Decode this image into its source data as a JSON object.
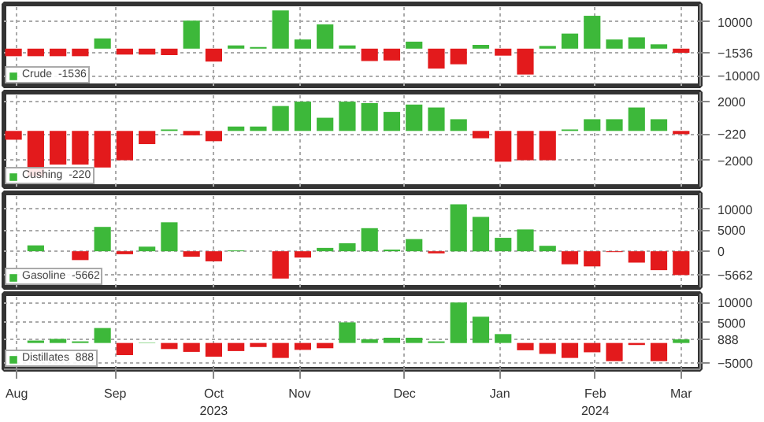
{
  "chart_data": [
    {
      "type": "bar",
      "x": [
        "2023-08-04",
        "2023-08-11",
        "2023-08-18",
        "2023-08-25",
        "2023-09-01",
        "2023-09-08",
        "2023-09-15",
        "2023-09-22",
        "2023-09-29",
        "2023-10-06",
        "2023-10-13",
        "2023-10-20",
        "2023-10-27",
        "2023-11-03",
        "2023-11-10",
        "2023-11-17",
        "2023-11-24",
        "2023-12-01",
        "2023-12-08",
        "2023-12-15",
        "2023-12-22",
        "2023-12-29",
        "2024-01-05",
        "2024-01-12",
        "2024-01-19",
        "2024-01-26",
        "2024-02-02",
        "2024-02-09",
        "2024-02-16",
        "2024-02-23",
        "2024-03-01"
      ],
      "series": [
        {
          "name": "Crude  -1536",
          "color": "#3db83a",
          "values": [
            -2800,
            -2800,
            -2800,
            -2800,
            3800,
            -2200,
            -2200,
            -2400,
            10400,
            -4800,
            1200,
            600,
            14200,
            3400,
            9000,
            1200,
            -4600,
            -4400,
            2600,
            -7400,
            -5800,
            1400,
            -2600,
            -9600,
            1000,
            5600,
            12200,
            3400,
            4200,
            1600,
            -1536
          ],
          "colors": [
            "#e31a1c",
            "#e31a1c",
            "#e31a1c",
            "#e31a1c",
            "#3db83a",
            "#e31a1c",
            "#e31a1c",
            "#e31a1c",
            "#3db83a",
            "#e31a1c",
            "#3db83a",
            "#3db83a",
            "#3db83a",
            "#3db83a",
            "#3db83a",
            "#3db83a",
            "#e31a1c",
            "#e31a1c",
            "#3db83a",
            "#e31a1c",
            "#e31a1c",
            "#3db83a",
            "#e31a1c",
            "#e31a1c",
            "#3db83a",
            "#3db83a",
            "#3db83a",
            "#3db83a",
            "#3db83a",
            "#3db83a",
            "#e31a1c"
          ]
        }
      ],
      "xlim": [
        "2023-08-04",
        "2024-03-07"
      ],
      "ylim": [
        -13800,
        16600
      ],
      "yticks": [
        -10000,
        -1536,
        10000
      ],
      "xticks": [
        {
          "value": "2023-08-05",
          "label": null
        },
        {
          "value": "2023-09-05",
          "label": null
        },
        {
          "value": "2023-10-06",
          "label": null
        },
        {
          "value": "2023-11-02",
          "label": null
        },
        {
          "value": "2023-12-05",
          "label": null
        },
        {
          "value": "2024-01-04",
          "label": null
        },
        {
          "value": "2024-02-03",
          "label": null
        },
        {
          "value": "2024-03-01",
          "label": null
        }
      ],
      "grid": true,
      "legend": "bottom left",
      "tick_labels": "y"
    },
    {
      "type": "bar",
      "x": [
        "2023-08-04",
        "2023-08-11",
        "2023-08-18",
        "2023-08-25",
        "2023-09-01",
        "2023-09-08",
        "2023-09-15",
        "2023-09-22",
        "2023-09-29",
        "2023-10-06",
        "2023-10-13",
        "2023-10-20",
        "2023-10-27",
        "2023-11-03",
        "2023-11-10",
        "2023-11-17",
        "2023-11-24",
        "2023-12-01",
        "2023-12-08",
        "2023-12-15",
        "2023-12-22",
        "2023-12-29",
        "2024-01-05",
        "2024-01-12",
        "2024-01-19",
        "2024-01-26",
        "2024-02-02",
        "2024-02-09",
        "2024-02-16",
        "2024-02-23",
        "2024-03-01"
      ],
      "series": [
        {
          "name": "Cushing  -220",
          "color": "#3db83a",
          "values": [
            -600,
            -3100,
            -2300,
            -2300,
            -2500,
            -2000,
            -900,
            100,
            -300,
            -700,
            300,
            300,
            1700,
            2000,
            900,
            2000,
            1900,
            1300,
            1800,
            1600,
            800,
            -500,
            -2100,
            -2000,
            -2000,
            100,
            800,
            800,
            1600,
            800,
            -220
          ],
          "colors": [
            "#e31a1c",
            "#e31a1c",
            "#e31a1c",
            "#e31a1c",
            "#e31a1c",
            "#e31a1c",
            "#e31a1c",
            "#3db83a",
            "#e31a1c",
            "#e31a1c",
            "#3db83a",
            "#3db83a",
            "#3db83a",
            "#3db83a",
            "#3db83a",
            "#3db83a",
            "#3db83a",
            "#3db83a",
            "#3db83a",
            "#3db83a",
            "#3db83a",
            "#e31a1c",
            "#e31a1c",
            "#e31a1c",
            "#e31a1c",
            "#3db83a",
            "#3db83a",
            "#3db83a",
            "#3db83a",
            "#3db83a",
            "#e31a1c"
          ]
        }
      ],
      "xlim": [
        "2023-08-04",
        "2024-03-07"
      ],
      "ylim": [
        -3800,
        2650
      ],
      "yticks": [
        -2000,
        -220,
        2000
      ],
      "xticks": [
        {
          "value": "2023-08-05",
          "label": null
        },
        {
          "value": "2023-09-05",
          "label": null
        },
        {
          "value": "2023-10-06",
          "label": null
        },
        {
          "value": "2023-11-02",
          "label": null
        },
        {
          "value": "2023-12-05",
          "label": null
        },
        {
          "value": "2024-01-04",
          "label": null
        },
        {
          "value": "2024-02-03",
          "label": null
        },
        {
          "value": "2024-03-01",
          "label": null
        }
      ],
      "grid": true,
      "legend": "bottom left",
      "tick_labels": "y"
    },
    {
      "type": "bar",
      "x": [
        "2023-08-11",
        "2023-08-18",
        "2023-08-25",
        "2023-09-01",
        "2023-09-08",
        "2023-09-15",
        "2023-09-22",
        "2023-09-29",
        "2023-10-06",
        "2023-10-13",
        "2023-10-20",
        "2023-10-27",
        "2023-11-03",
        "2023-11-10",
        "2023-11-17",
        "2023-11-24",
        "2023-12-01",
        "2023-12-08",
        "2023-12-15",
        "2023-12-22",
        "2023-12-29",
        "2024-01-05",
        "2024-01-12",
        "2024-01-19",
        "2024-01-26",
        "2024-02-02",
        "2024-02-09",
        "2024-02-16",
        "2024-02-23",
        "2024-03-01"
      ],
      "series": [
        {
          "name": "Gasoline  -5662",
          "color": "#3db83a",
          "values": [
            1400,
            null,
            -2100,
            5800,
            -700,
            1100,
            6900,
            -1300,
            -2400,
            200,
            null,
            -6500,
            -1500,
            800,
            1900,
            5500,
            400,
            2900,
            -500,
            11200,
            8200,
            3200,
            5200,
            1300,
            -3100,
            -3600,
            -200,
            -2700,
            -4500,
            -5662
          ],
          "colors": [
            "#3db83a",
            "#3db83a",
            "#e31a1c",
            "#3db83a",
            "#e31a1c",
            "#3db83a",
            "#3db83a",
            "#e31a1c",
            "#e31a1c",
            "#3db83a",
            "#3db83a",
            "#e31a1c",
            "#e31a1c",
            "#3db83a",
            "#3db83a",
            "#3db83a",
            "#3db83a",
            "#3db83a",
            "#e31a1c",
            "#3db83a",
            "#3db83a",
            "#3db83a",
            "#3db83a",
            "#3db83a",
            "#e31a1c",
            "#e31a1c",
            "#e31a1c",
            "#e31a1c",
            "#e31a1c",
            "#e31a1c"
          ]
        }
      ],
      "xlim": [
        "2023-08-04",
        "2024-03-07"
      ],
      "ylim": [
        -8600,
        13900
      ],
      "yticks": [
        -5662,
        0,
        5000,
        10000
      ],
      "xticks": [
        {
          "value": "2023-08-05",
          "label": null
        },
        {
          "value": "2023-09-05",
          "label": null
        },
        {
          "value": "2023-10-06",
          "label": null
        },
        {
          "value": "2023-11-02",
          "label": null
        },
        {
          "value": "2023-12-05",
          "label": null
        },
        {
          "value": "2024-01-04",
          "label": null
        },
        {
          "value": "2024-02-03",
          "label": null
        },
        {
          "value": "2024-03-01",
          "label": null
        }
      ],
      "grid": true,
      "legend": "bottom left",
      "tick_labels": "y"
    },
    {
      "type": "bar",
      "x": [
        "2023-08-11",
        "2023-08-18",
        "2023-08-25",
        "2023-09-01",
        "2023-09-08",
        "2023-09-15",
        "2023-09-22",
        "2023-09-29",
        "2023-10-06",
        "2023-10-13",
        "2023-10-20",
        "2023-10-27",
        "2023-11-03",
        "2023-11-10",
        "2023-11-17",
        "2023-11-24",
        "2023-12-01",
        "2023-12-08",
        "2023-12-15",
        "2023-12-22",
        "2023-12-29",
        "2024-01-05",
        "2024-01-12",
        "2024-01-19",
        "2024-01-26",
        "2024-02-02",
        "2024-02-09",
        "2024-02-16",
        "2024-02-23",
        "2024-03-01"
      ],
      "series": [
        {
          "name": "Distillates  888",
          "color": "#3db83a",
          "values": [
            600,
            1000,
            400,
            3700,
            -3000,
            100,
            -1500,
            -2200,
            -3400,
            -2000,
            -1000,
            -3700,
            -1700,
            -1300,
            5100,
            900,
            1300,
            1300,
            400,
            10000,
            6500,
            2200,
            -1800,
            -2700,
            -3700,
            -2300,
            -4500,
            -500,
            -4500,
            888
          ],
          "colors": [
            "#3db83a",
            "#3db83a",
            "#3db83a",
            "#3db83a",
            "#e31a1c",
            "#3db83a",
            "#e31a1c",
            "#e31a1c",
            "#e31a1c",
            "#e31a1c",
            "#e31a1c",
            "#e31a1c",
            "#e31a1c",
            "#e31a1c",
            "#3db83a",
            "#3db83a",
            "#3db83a",
            "#3db83a",
            "#3db83a",
            "#3db83a",
            "#3db83a",
            "#3db83a",
            "#e31a1c",
            "#e31a1c",
            "#e31a1c",
            "#e31a1c",
            "#e31a1c",
            "#e31a1c",
            "#e31a1c",
            "#3db83a"
          ]
        }
      ],
      "xlim": [
        "2023-08-04",
        "2024-03-07"
      ],
      "ylim": [
        -6500,
        12200
      ],
      "yticks": [
        -5000,
        888,
        5000,
        10000
      ],
      "xticks": [
        {
          "value": "2023-08-05",
          "label": "Aug"
        },
        {
          "value": "2023-09-05",
          "label": "Sep"
        },
        {
          "value": "2023-10-06",
          "label": "Oct\n2023"
        },
        {
          "value": "2023-11-02",
          "label": "Nov"
        },
        {
          "value": "2023-12-05",
          "label": "Dec"
        },
        {
          "value": "2024-01-04",
          "label": "Jan"
        },
        {
          "value": "2024-02-03",
          "label": "Feb\n2024"
        },
        {
          "value": "2024-03-01",
          "label": "Mar"
        }
      ],
      "grid": true,
      "legend": "bottom left"
    }
  ]
}
